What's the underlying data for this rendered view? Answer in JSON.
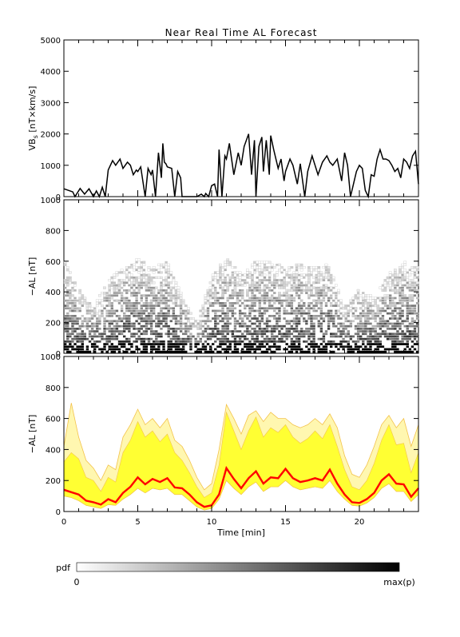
{
  "title": "Near Real Time AL Forecast",
  "colors": {
    "line": "#000000",
    "band_outer": "#f3c24a",
    "band_fill_light": "#fff7b0",
    "band_fill_strong": "#ffff33",
    "median": "#ff0000"
  },
  "chart_data": [
    {
      "type": "line",
      "panel": "top",
      "ylabel_main": "VB",
      "ylabel_sub": "s",
      "ylabel_unit": " [nT×km/s]",
      "ylim": [
        0,
        5000
      ],
      "yticks": [
        0,
        1000,
        2000,
        3000,
        4000,
        5000
      ],
      "xlim": [
        0,
        24
      ],
      "x": [
        0.0,
        0.6,
        0.75,
        1.1,
        1.4,
        1.7,
        2.0,
        2.2,
        2.4,
        2.6,
        2.8,
        3.0,
        3.3,
        3.5,
        3.8,
        4.0,
        4.3,
        4.5,
        4.7,
        4.9,
        5.0,
        5.2,
        5.5,
        5.7,
        5.9,
        6.0,
        6.2,
        6.4,
        6.6,
        6.7,
        6.8,
        6.9,
        7.0,
        7.3,
        7.5,
        7.7,
        7.9,
        8.0,
        8.5,
        9.0,
        9.3,
        9.5,
        9.6,
        9.8,
        10.0,
        10.2,
        10.4,
        10.5,
        10.7,
        10.9,
        11.0,
        11.2,
        11.5,
        11.8,
        12.0,
        12.2,
        12.5,
        12.7,
        12.9,
        13.0,
        13.2,
        13.4,
        13.5,
        13.7,
        13.9,
        14.0,
        14.2,
        14.5,
        14.7,
        14.9,
        15.0,
        15.3,
        15.5,
        15.8,
        16.0,
        16.3,
        16.5,
        16.8,
        17.0,
        17.2,
        17.5,
        17.8,
        18.0,
        18.2,
        18.5,
        18.8,
        19.0,
        19.2,
        19.4,
        19.6,
        19.8,
        20.0,
        20.2,
        20.4,
        20.6,
        20.8,
        21.0,
        21.2,
        21.4,
        21.6,
        21.8,
        22.0,
        22.2,
        22.4,
        22.6,
        22.8,
        23.0,
        23.2,
        23.4,
        23.6,
        23.8,
        24.0
      ],
      "values": [
        250,
        150,
        0,
        260,
        80,
        250,
        0,
        180,
        0,
        300,
        0,
        850,
        1150,
        1000,
        1200,
        900,
        1100,
        1000,
        700,
        850,
        800,
        950,
        0,
        900,
        700,
        850,
        0,
        1400,
        600,
        1700,
        1100,
        1050,
        950,
        900,
        0,
        800,
        600,
        0,
        0,
        0,
        80,
        0,
        100,
        0,
        350,
        400,
        0,
        1500,
        0,
        1300,
        1200,
        1700,
        700,
        1400,
        1000,
        1600,
        2000,
        700,
        1800,
        0,
        1600,
        1900,
        800,
        1800,
        700,
        1950,
        1500,
        900,
        1200,
        500,
        800,
        1200,
        1000,
        400,
        1050,
        0,
        800,
        1300,
        1000,
        700,
        1100,
        1300,
        1100,
        1000,
        1200,
        500,
        1400,
        1000,
        0,
        400,
        800,
        1000,
        900,
        200,
        0,
        700,
        650,
        1200,
        1500,
        1200,
        1200,
        1150,
        1000,
        800,
        900,
        600,
        1200,
        1100,
        900,
        1300,
        1450,
        400
      ]
    },
    {
      "type": "heatmap",
      "panel": "middle",
      "ylabel": "−AL [nT]",
      "ylim": [
        0,
        1000
      ],
      "yticks": [
        0,
        200,
        400,
        600,
        800,
        1000
      ],
      "xlim": [
        0,
        24
      ],
      "envelope_x": [
        0,
        1,
        2,
        3,
        4,
        5,
        6,
        7,
        8,
        9,
        10,
        11,
        12,
        13,
        14,
        15,
        16,
        17,
        18,
        19,
        20,
        21,
        22,
        23,
        24
      ],
      "envelope_max": [
        620,
        420,
        300,
        480,
        560,
        620,
        560,
        600,
        380,
        200,
        500,
        630,
        520,
        600,
        600,
        560,
        580,
        560,
        580,
        300,
        420,
        360,
        520,
        600,
        560
      ]
    },
    {
      "type": "area",
      "panel": "bottom",
      "ylabel": "−AL [nT]",
      "xlabel": "Time [min]",
      "ylim": [
        0,
        1000
      ],
      "yticks": [
        0,
        200,
        400,
        600,
        800,
        1000
      ],
      "xlim": [
        0,
        24
      ],
      "xticks": [
        0,
        5,
        10,
        15,
        20
      ],
      "x": [
        0,
        0.5,
        1,
        1.5,
        2,
        2.5,
        3,
        3.5,
        4,
        4.5,
        5,
        5.5,
        6,
        6.5,
        7,
        7.5,
        8,
        8.5,
        9,
        9.5,
        10,
        10.5,
        11,
        11.5,
        12,
        12.5,
        13,
        13.5,
        14,
        14.5,
        15,
        15.5,
        16,
        16.5,
        17,
        17.5,
        18,
        18.5,
        19,
        19.5,
        20,
        20.5,
        21,
        21.5,
        22,
        22.5,
        23,
        23.5,
        24
      ],
      "median": [
        140,
        125,
        110,
        70,
        60,
        45,
        80,
        60,
        120,
        160,
        220,
        175,
        210,
        190,
        215,
        155,
        150,
        110,
        60,
        30,
        40,
        110,
        280,
        210,
        150,
        215,
        260,
        180,
        220,
        215,
        275,
        215,
        190,
        200,
        215,
        200,
        270,
        180,
        110,
        60,
        55,
        80,
        120,
        200,
        240,
        180,
        175,
        95,
        150
      ],
      "inner_upper": [
        320,
        380,
        340,
        220,
        200,
        130,
        220,
        190,
        380,
        460,
        580,
        480,
        520,
        450,
        500,
        380,
        330,
        250,
        160,
        90,
        120,
        300,
        640,
        520,
        400,
        520,
        610,
        480,
        540,
        510,
        560,
        480,
        440,
        470,
        520,
        470,
        560,
        420,
        270,
        160,
        140,
        200,
        310,
        460,
        560,
        430,
        440,
        250,
        380
      ],
      "outer_upper": [
        420,
        700,
        480,
        330,
        280,
        200,
        300,
        270,
        480,
        560,
        660,
        560,
        600,
        540,
        600,
        460,
        420,
        330,
        220,
        140,
        180,
        400,
        690,
        600,
        500,
        620,
        650,
        580,
        640,
        600,
        600,
        560,
        540,
        560,
        600,
        560,
        630,
        540,
        360,
        240,
        220,
        300,
        420,
        560,
        620,
        540,
        600,
        420,
        560
      ],
      "inner_lower": [
        100,
        90,
        70,
        40,
        30,
        20,
        45,
        40,
        80,
        110,
        150,
        120,
        150,
        140,
        150,
        110,
        110,
        70,
        30,
        10,
        20,
        80,
        200,
        150,
        110,
        160,
        190,
        130,
        160,
        160,
        200,
        160,
        140,
        150,
        160,
        150,
        200,
        130,
        80,
        40,
        35,
        55,
        90,
        150,
        180,
        130,
        130,
        65,
        110
      ]
    }
  ],
  "colorbar": {
    "label": "pdf",
    "min_label": "0",
    "max_label": "max(p)"
  }
}
